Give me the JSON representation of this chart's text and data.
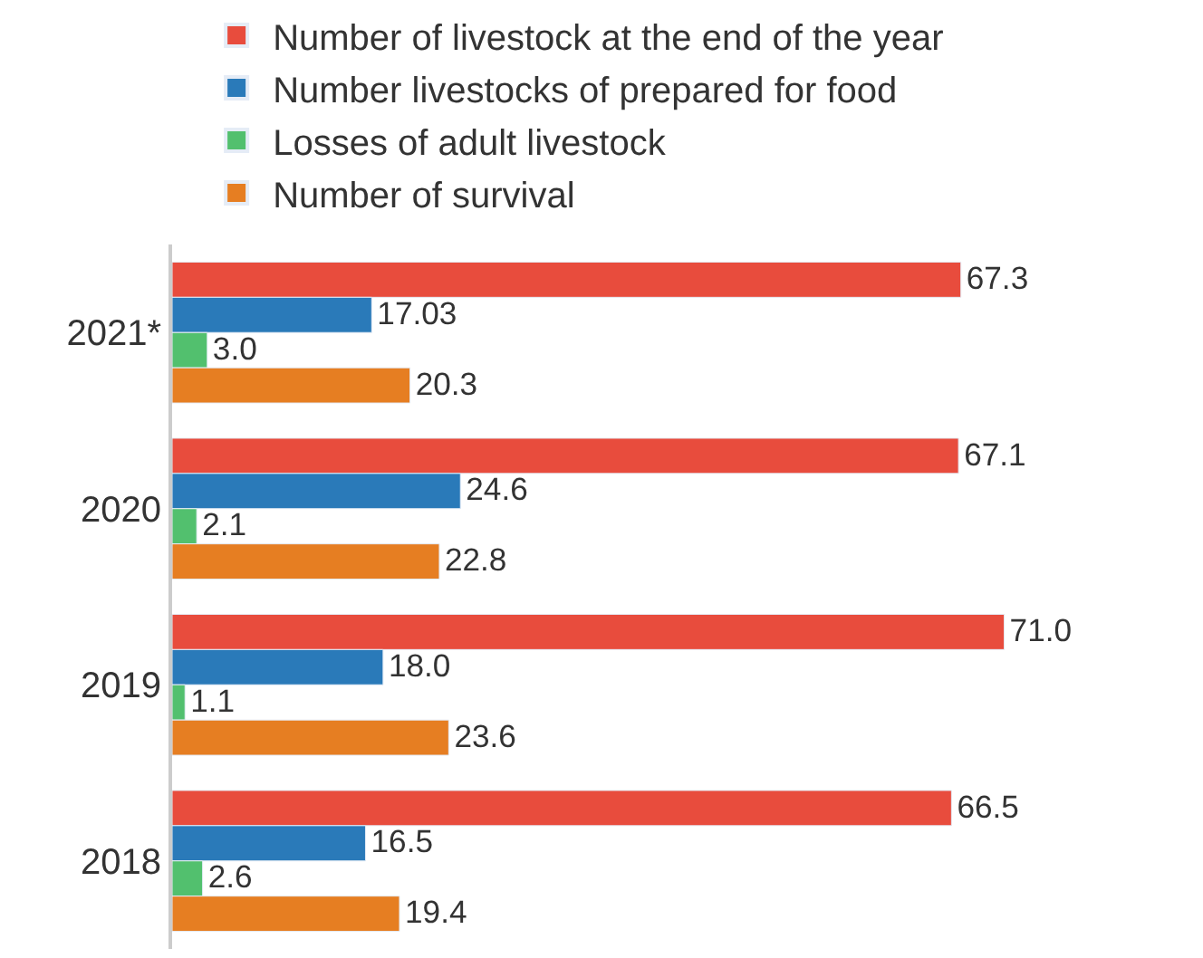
{
  "chart_data": {
    "type": "bar",
    "orientation": "horizontal",
    "legend": "top",
    "data_labels": true,
    "categories": [
      "2021*",
      "2020",
      "2019",
      "2018"
    ],
    "series": [
      {
        "name": "Number of livestock at the end of the year",
        "color": "#e84c3d",
        "values": [
          67.3,
          67.1,
          71.0,
          66.5
        ],
        "value_labels": [
          "67.3",
          "67.1",
          "71.0",
          "66.5"
        ]
      },
      {
        "name": "Number livestocks of prepared for food",
        "color": "#2a7ab9",
        "values": [
          17.03,
          24.6,
          18.0,
          16.5
        ],
        "value_labels": [
          "17.03",
          "24.6",
          "18.0",
          "16.5"
        ]
      },
      {
        "name": "Losses of adult livestock",
        "color": "#52c06e",
        "values": [
          3.0,
          2.1,
          1.1,
          2.6
        ],
        "value_labels": [
          "3.0",
          "2.1",
          "1.1",
          "2.6"
        ]
      },
      {
        "name": "Number of survival",
        "color": "#e67e22",
        "values": [
          20.3,
          22.8,
          23.6,
          19.4
        ],
        "value_labels": [
          "20.3",
          "22.8",
          "23.6",
          "19.4"
        ]
      }
    ]
  }
}
